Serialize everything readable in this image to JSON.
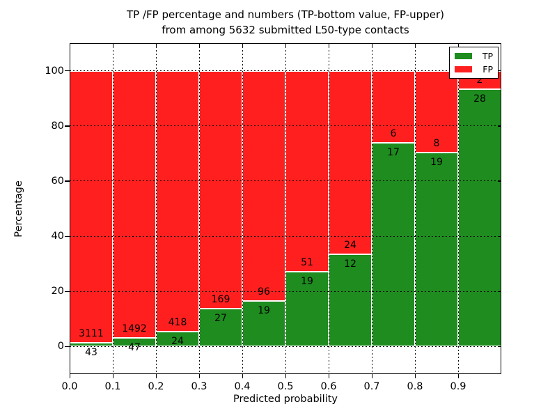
{
  "figure": {
    "title_line1": "TP /FP percentage and numbers (TP-bottom value, FP-upper)",
    "title_line2": "from among 5632 submitted L50-type contacts"
  },
  "chart_data": {
    "type": "bar",
    "stacked": true,
    "orientation": "vertical",
    "title": "TP /FP percentage and numbers (TP-bottom value, FP-upper) from among 5632 submitted L50-type contacts",
    "xlabel": "Predicted probability",
    "ylabel": "Percentage",
    "total_contacts": 5632,
    "bin_width": 0.1,
    "bin_starts": [
      0.0,
      0.1,
      0.2,
      0.3,
      0.4,
      0.5,
      0.6,
      0.7,
      0.8,
      0.9
    ],
    "categories": [
      "0.0",
      "0.1",
      "0.2",
      "0.3",
      "0.4",
      "0.5",
      "0.6",
      "0.7",
      "0.8",
      "0.9"
    ],
    "series": [
      {
        "name": "TP",
        "color": "#1e8c1e",
        "counts": [
          43,
          47,
          24,
          27,
          19,
          19,
          12,
          17,
          19,
          28
        ],
        "percent_of_bin": [
          1.36,
          3.05,
          5.43,
          13.78,
          16.52,
          27.14,
          33.33,
          73.91,
          70.37,
          93.33
        ]
      },
      {
        "name": "FP",
        "color": "#ff1f1f",
        "counts": [
          3111,
          1492,
          418,
          169,
          96,
          51,
          24,
          6,
          8,
          2
        ],
        "percent_of_bin": [
          98.64,
          96.95,
          94.57,
          86.22,
          83.48,
          72.86,
          66.67,
          26.09,
          29.63,
          6.67
        ]
      }
    ],
    "xtick_labels": [
      "0.0",
      "0.1",
      "0.2",
      "0.3",
      "0.4",
      "0.5",
      "0.6",
      "0.7",
      "0.8",
      "0.9"
    ],
    "yticks": [
      0,
      20,
      40,
      60,
      80,
      100
    ],
    "xlim": [
      0.0,
      1.0
    ],
    "ylim": [
      -10,
      110
    ],
    "grid": "dotted",
    "legend": {
      "position": "upper right",
      "entries": [
        "TP",
        "FP"
      ]
    }
  },
  "colors": {
    "tp_green": "#1e8c1e",
    "fp_red": "#ff1f1f",
    "grid_black": "#000000",
    "background": "#ffffff"
  }
}
